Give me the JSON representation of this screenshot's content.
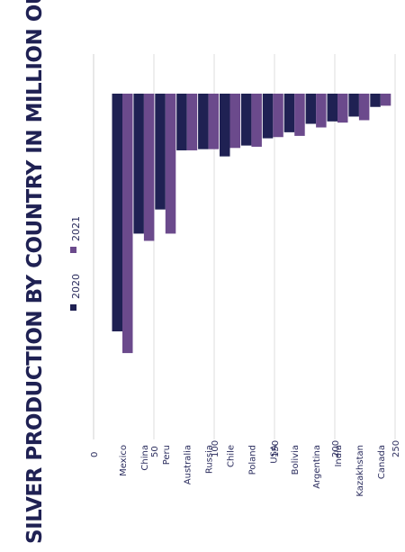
{
  "chart_data": {
    "type": "bar",
    "orientation": "rotated-vertical",
    "title": "SILVER PRODUCTION BY COUNTRY IN MILLION OUNCES",
    "categories": [
      "Mexico",
      "China",
      "Peru",
      "Australia",
      "Russia",
      "Chile",
      "Poland",
      "USA",
      "Bolivia",
      "Argentina",
      "India",
      "Kazakhstan",
      "Canada"
    ],
    "series": [
      {
        "name": "2020",
        "color": "#1f2153",
        "values": [
          197,
          116,
          96,
          47,
          46,
          52,
          43,
          37,
          32,
          25,
          23,
          19,
          11
        ]
      },
      {
        "name": "2021",
        "color": "#6b4a8c",
        "values": [
          215,
          122,
          116,
          47,
          46,
          45,
          44,
          36,
          35,
          28,
          24,
          22,
          10
        ]
      }
    ],
    "ylim": [
      0,
      250
    ],
    "yticks": [
      "0",
      "50",
      "100",
      "150",
      "200",
      "250"
    ],
    "grid": true,
    "legend": "top-left"
  }
}
